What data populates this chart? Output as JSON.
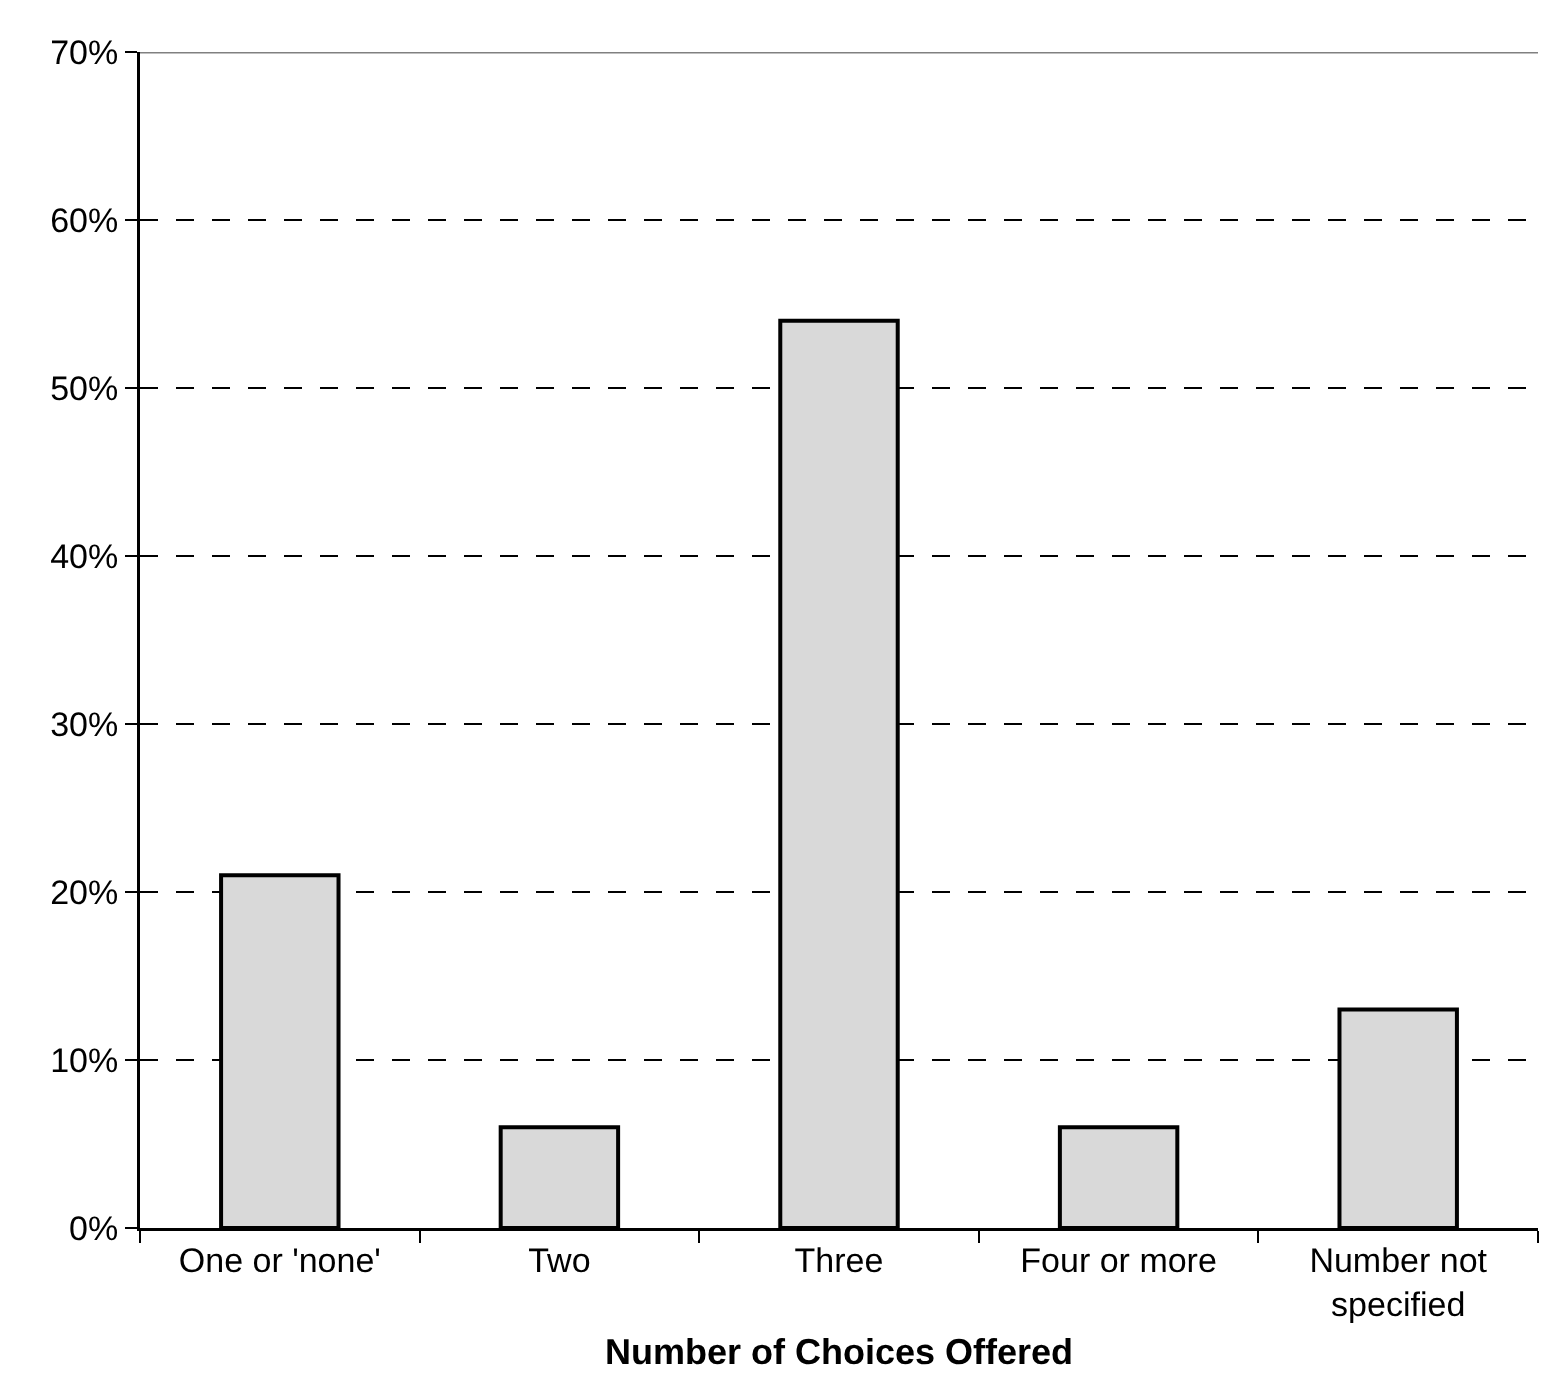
{
  "chart_data": {
    "type": "bar",
    "xlabel": "Number of Choices Offered",
    "categories": [
      "One or 'none'",
      "Two",
      "Three",
      "Four or more",
      "Number not specified"
    ],
    "values": [
      21,
      6,
      54,
      6,
      13
    ],
    "color": "#d9d9d9",
    "ylim": [
      0,
      70
    ],
    "yticks": [
      {
        "value": 0,
        "label": "0%"
      },
      {
        "value": 10,
        "label": "10%"
      },
      {
        "value": 20,
        "label": "20%"
      },
      {
        "value": 30,
        "label": "30%"
      },
      {
        "value": 40,
        "label": "40%"
      },
      {
        "value": 50,
        "label": "50%"
      },
      {
        "value": 60,
        "label": "60%"
      },
      {
        "value": 70,
        "label": "70%"
      }
    ],
    "grid": "y",
    "line_style": "dashed",
    "legend": false
  }
}
